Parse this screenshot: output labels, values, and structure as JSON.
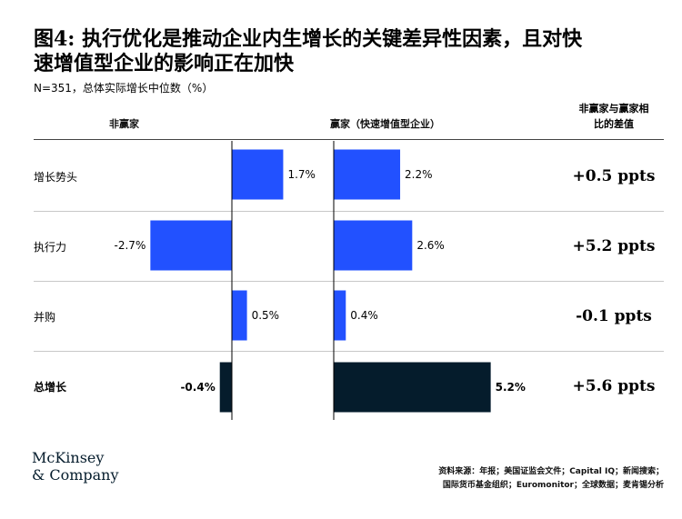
{
  "header": {
    "title_line1": "图4: 执行优化是推动企业内生增长的关键差异性因素，且对快",
    "title_line2": "速增值型企业的影响正在加快",
    "subtitle": "N=351，总体实际增长中位数（%）"
  },
  "columns": {
    "non_winners": "非赢家",
    "winners": "赢家（快速增值型企业）",
    "difference_line1": "非赢家与赢家相",
    "difference_line2": "比的差值"
  },
  "rows": [
    {
      "label": "增长势头",
      "difference": "+0.5 ppts"
    },
    {
      "label": "执行力",
      "difference": "+5.2 ppts"
    },
    {
      "label": "并购",
      "difference": "-0.1 ppts"
    },
    {
      "label": "总增长",
      "difference": "+5.6 ppts"
    }
  ],
  "chart_data": {
    "type": "bar",
    "categories": [
      "增长势头",
      "执行力",
      "并购",
      "总增长"
    ],
    "series": [
      {
        "name": "非赢家",
        "values": [
          1.7,
          -2.7,
          0.5,
          -0.4
        ],
        "labels": [
          "1.7%",
          "-2.7%",
          "0.5%",
          "-0.4%"
        ]
      },
      {
        "name": "赢家（快速增值型企业）",
        "values": [
          2.2,
          2.6,
          0.4,
          5.2
        ],
        "labels": [
          "2.2%",
          "2.6%",
          "0.4%",
          "5.2%"
        ]
      }
    ],
    "colors": {
      "bar": "#2251ff",
      "total_bar": "#051c2c",
      "axis": "#000000"
    }
  },
  "footer": {
    "logo_line1": "McKinsey",
    "logo_line2": "& Company",
    "source_line1": "资料来源：年报；美国证监会文件；Capital IQ；新闻搜索；",
    "source_line2": "国际货币基金组织；Euromonitor；全球数据；麦肯锡分析"
  }
}
